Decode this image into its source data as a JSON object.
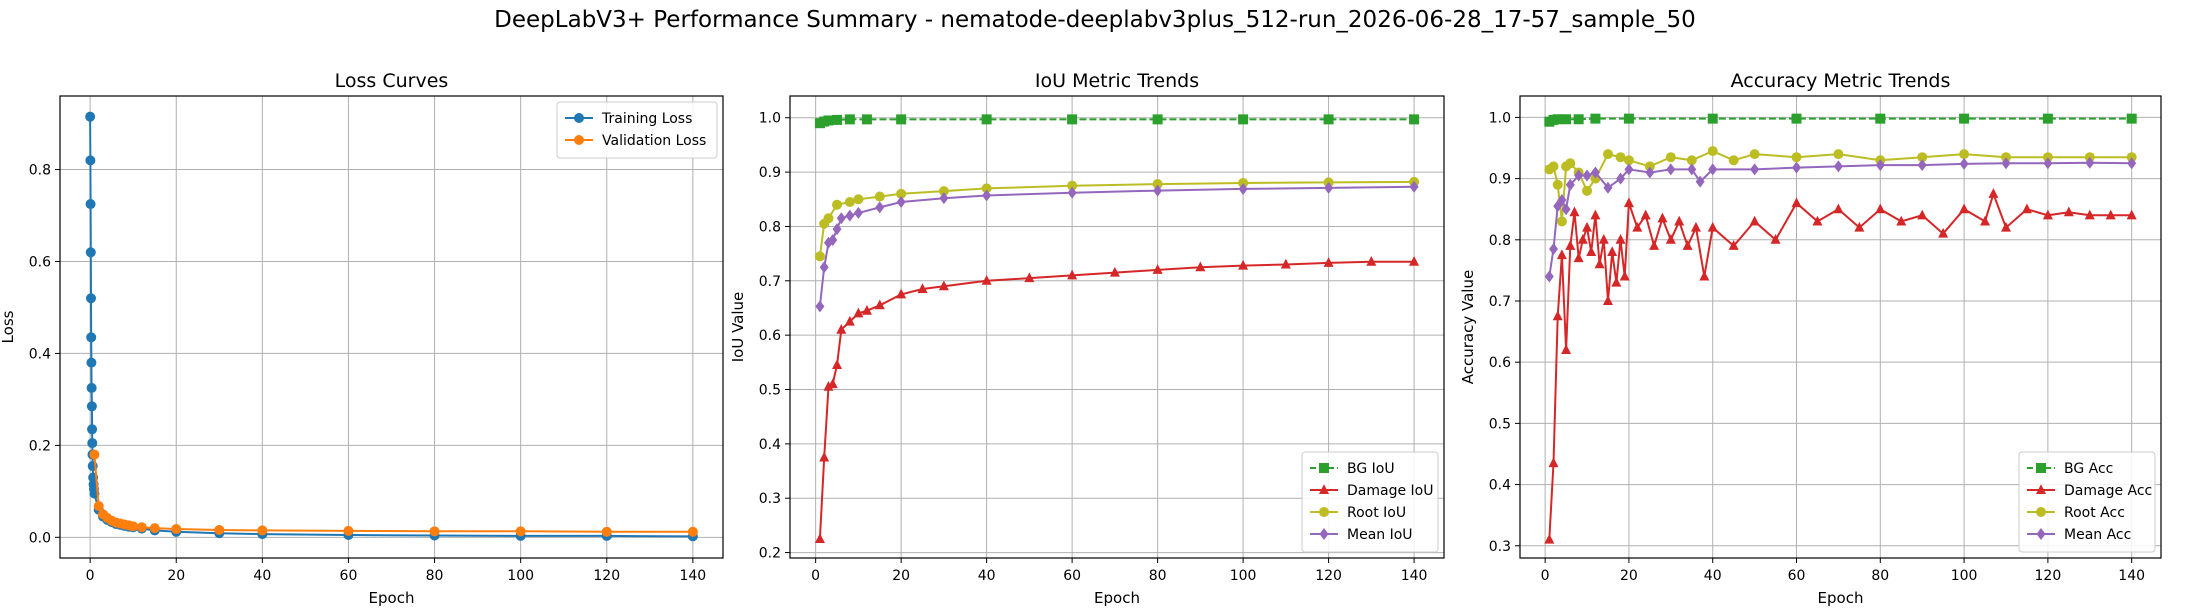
{
  "suptitle": "DeepLabV3+ Performance Summary - nematode-deeplabv3plus_512-run_2026-06-28_17-57_sample_50",
  "colors": {
    "blue": "#1f77b4",
    "orange": "#ff7f0e",
    "green": "#2ca02c",
    "red": "#d62728",
    "olive": "#bcbd22",
    "purple": "#9467bd"
  },
  "chart_data": [
    {
      "type": "line",
      "title": "Loss Curves",
      "xlabel": "Epoch",
      "ylabel": "Loss",
      "xlim": [
        -7,
        147
      ],
      "ylim": [
        -0.045,
        0.96
      ],
      "xticks": [
        0,
        20,
        40,
        60,
        80,
        100,
        120,
        140
      ],
      "yticks": [
        0.0,
        0.2,
        0.4,
        0.6,
        0.8
      ],
      "grid": true,
      "legend": "upper right",
      "series": [
        {
          "name": "Training Loss",
          "color": "#1f77b4",
          "marker": "o",
          "x": [
            0,
            0.05,
            0.1,
            0.15,
            0.2,
            0.25,
            0.3,
            0.35,
            0.4,
            0.45,
            0.5,
            0.55,
            0.6,
            0.7,
            0.8,
            0.9,
            1,
            2,
            3,
            4,
            5,
            6,
            7,
            8,
            9,
            10,
            12,
            15,
            20,
            30,
            40,
            60,
            80,
            100,
            120,
            140
          ],
          "y": [
            0.915,
            0.82,
            0.725,
            0.62,
            0.52,
            0.435,
            0.38,
            0.325,
            0.285,
            0.235,
            0.205,
            0.18,
            0.155,
            0.13,
            0.115,
            0.105,
            0.095,
            0.06,
            0.045,
            0.038,
            0.033,
            0.029,
            0.027,
            0.025,
            0.023,
            0.022,
            0.019,
            0.015,
            0.012,
            0.009,
            0.007,
            0.005,
            0.004,
            0.003,
            0.003,
            0.002
          ]
        },
        {
          "name": "Validation Loss",
          "color": "#ff7f0e",
          "marker": "o",
          "x": [
            1,
            2,
            3,
            4,
            5,
            6,
            7,
            8,
            9,
            10,
            12,
            15,
            20,
            30,
            40,
            60,
            80,
            100,
            120,
            140
          ],
          "y": [
            0.18,
            0.068,
            0.05,
            0.042,
            0.036,
            0.032,
            0.03,
            0.028,
            0.026,
            0.024,
            0.022,
            0.02,
            0.018,
            0.016,
            0.015,
            0.014,
            0.013,
            0.013,
            0.012,
            0.012
          ]
        }
      ]
    },
    {
      "type": "line",
      "title": "IoU Metric Trends",
      "xlabel": "Epoch",
      "ylabel": "IoU Value",
      "xlim": [
        -6,
        147
      ],
      "ylim": [
        0.19,
        1.04
      ],
      "xticks": [
        0,
        20,
        40,
        60,
        80,
        100,
        120,
        140
      ],
      "yticks": [
        0.2,
        0.3,
        0.4,
        0.5,
        0.6,
        0.7,
        0.8,
        0.9,
        1.0
      ],
      "grid": true,
      "legend": "lower right",
      "series": [
        {
          "name": "BG IoU",
          "color": "#2ca02c",
          "marker": "s",
          "dashed": true,
          "x": [
            1,
            2,
            3,
            5,
            8,
            12,
            20,
            40,
            60,
            80,
            100,
            120,
            140
          ],
          "y": [
            0.99,
            0.993,
            0.995,
            0.996,
            0.997,
            0.997,
            0.997,
            0.997,
            0.997,
            0.997,
            0.997,
            0.997,
            0.997
          ]
        },
        {
          "name": "Damage IoU",
          "color": "#d62728",
          "marker": "^",
          "x": [
            1,
            2,
            3,
            4,
            5,
            6,
            8,
            10,
            12,
            15,
            20,
            25,
            30,
            40,
            50,
            60,
            70,
            80,
            90,
            100,
            110,
            120,
            130,
            140
          ],
          "y": [
            0.225,
            0.375,
            0.505,
            0.51,
            0.545,
            0.61,
            0.625,
            0.64,
            0.645,
            0.655,
            0.675,
            0.685,
            0.69,
            0.7,
            0.705,
            0.71,
            0.715,
            0.72,
            0.725,
            0.728,
            0.73,
            0.733,
            0.735,
            0.735
          ]
        },
        {
          "name": "Root IoU",
          "color": "#bcbd22",
          "marker": "o",
          "x": [
            1,
            2,
            3,
            5,
            8,
            10,
            15,
            20,
            30,
            40,
            60,
            80,
            100,
            120,
            140
          ],
          "y": [
            0.745,
            0.805,
            0.815,
            0.84,
            0.845,
            0.85,
            0.855,
            0.86,
            0.865,
            0.87,
            0.875,
            0.878,
            0.88,
            0.881,
            0.882
          ]
        },
        {
          "name": "Mean IoU",
          "color": "#9467bd",
          "marker": "D",
          "x": [
            1,
            2,
            3,
            4,
            5,
            6,
            8,
            10,
            15,
            20,
            30,
            40,
            60,
            80,
            100,
            120,
            140
          ],
          "y": [
            0.653,
            0.725,
            0.77,
            0.775,
            0.795,
            0.815,
            0.82,
            0.825,
            0.835,
            0.845,
            0.852,
            0.857,
            0.862,
            0.866,
            0.869,
            0.871,
            0.873
          ]
        }
      ]
    },
    {
      "type": "line",
      "title": "Accuracy Metric Trends",
      "xlabel": "Epoch",
      "ylabel": "Accuracy Value",
      "xlim": [
        -6,
        147
      ],
      "ylim": [
        0.28,
        1.035
      ],
      "xticks": [
        0,
        20,
        40,
        60,
        80,
        100,
        120,
        140
      ],
      "yticks": [
        0.3,
        0.4,
        0.5,
        0.6,
        0.7,
        0.8,
        0.9,
        1.0
      ],
      "grid": true,
      "legend": "lower right",
      "series": [
        {
          "name": "BG Acc",
          "color": "#2ca02c",
          "marker": "s",
          "dashed": true,
          "x": [
            1,
            2,
            3,
            5,
            8,
            12,
            20,
            40,
            60,
            80,
            100,
            120,
            140
          ],
          "y": [
            0.993,
            0.996,
            0.997,
            0.997,
            0.997,
            0.998,
            0.998,
            0.998,
            0.998,
            0.998,
            0.998,
            0.998,
            0.998
          ]
        },
        {
          "name": "Damage Acc",
          "color": "#d62728",
          "marker": "^",
          "x": [
            1,
            2,
            3,
            4,
            5,
            6,
            7,
            8,
            9,
            10,
            11,
            12,
            13,
            14,
            15,
            16,
            17,
            18,
            19,
            20,
            22,
            24,
            26,
            28,
            30,
            32,
            34,
            36,
            38,
            40,
            45,
            50,
            55,
            60,
            65,
            70,
            75,
            80,
            85,
            90,
            95,
            100,
            105,
            107,
            110,
            115,
            120,
            125,
            130,
            135,
            140
          ],
          "y": [
            0.31,
            0.435,
            0.675,
            0.775,
            0.62,
            0.79,
            0.845,
            0.77,
            0.8,
            0.82,
            0.78,
            0.84,
            0.76,
            0.8,
            0.7,
            0.78,
            0.73,
            0.8,
            0.74,
            0.86,
            0.82,
            0.84,
            0.79,
            0.835,
            0.8,
            0.83,
            0.79,
            0.82,
            0.74,
            0.82,
            0.79,
            0.83,
            0.8,
            0.86,
            0.83,
            0.85,
            0.82,
            0.85,
            0.83,
            0.84,
            0.81,
            0.85,
            0.83,
            0.875,
            0.82,
            0.85,
            0.84,
            0.845,
            0.84,
            0.84,
            0.84
          ]
        },
        {
          "name": "Root Acc",
          "color": "#bcbd22",
          "marker": "o",
          "x": [
            1,
            2,
            3,
            4,
            5,
            6,
            8,
            10,
            12,
            15,
            18,
            20,
            25,
            30,
            35,
            40,
            45,
            50,
            60,
            70,
            80,
            90,
            100,
            110,
            120,
            130,
            140
          ],
          "y": [
            0.915,
            0.92,
            0.89,
            0.83,
            0.92,
            0.925,
            0.91,
            0.88,
            0.9,
            0.94,
            0.935,
            0.93,
            0.92,
            0.935,
            0.93,
            0.945,
            0.93,
            0.94,
            0.935,
            0.94,
            0.93,
            0.935,
            0.94,
            0.935,
            0.935,
            0.935,
            0.935
          ]
        },
        {
          "name": "Mean Acc",
          "color": "#9467bd",
          "marker": "D",
          "x": [
            1,
            2,
            3,
            4,
            5,
            6,
            8,
            10,
            12,
            15,
            18,
            20,
            25,
            30,
            35,
            37,
            40,
            50,
            60,
            70,
            80,
            90,
            100,
            110,
            120,
            130,
            140
          ],
          "y": [
            0.74,
            0.785,
            0.855,
            0.865,
            0.85,
            0.89,
            0.905,
            0.905,
            0.91,
            0.885,
            0.9,
            0.915,
            0.91,
            0.915,
            0.915,
            0.895,
            0.915,
            0.915,
            0.918,
            0.92,
            0.922,
            0.922,
            0.924,
            0.925,
            0.925,
            0.926,
            0.925
          ]
        }
      ]
    }
  ]
}
